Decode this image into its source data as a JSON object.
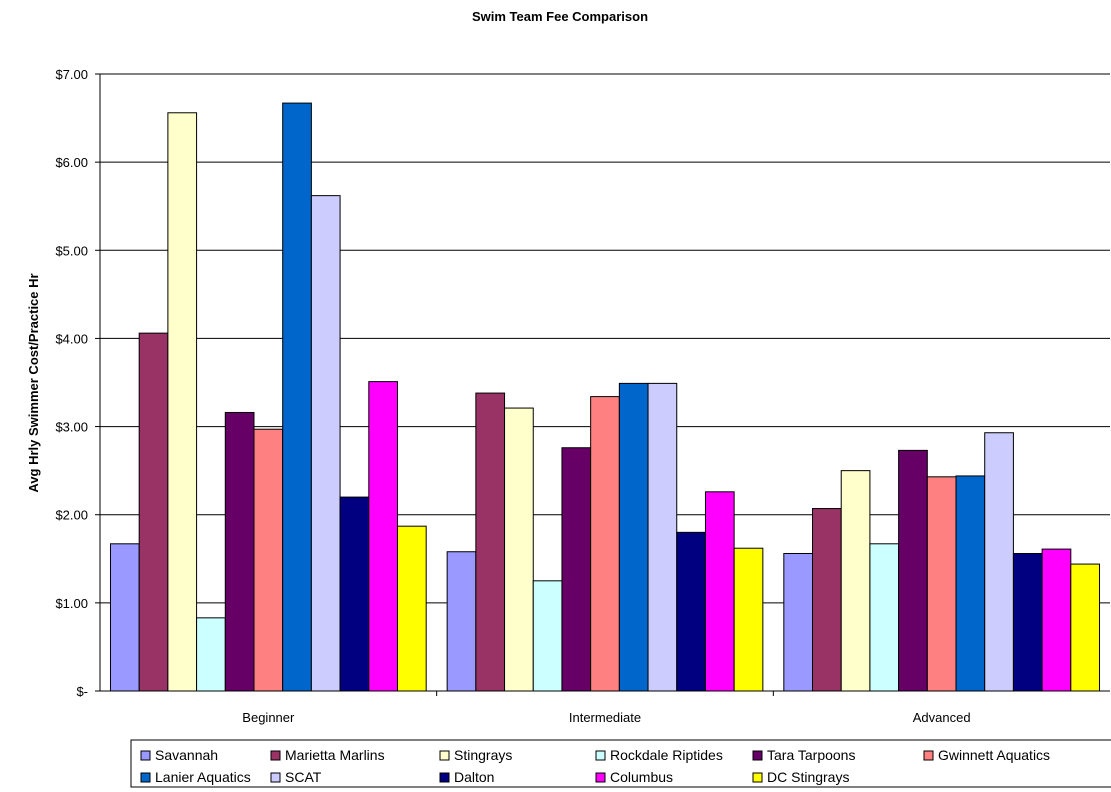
{
  "chart_data": {
    "type": "bar",
    "title": "Swim Team Fee Comparison",
    "xlabel": "",
    "ylabel": "Avg Hrly Swimmer Cost/Practice Hr",
    "ylim": [
      0,
      7
    ],
    "yticks": [
      0,
      1,
      2,
      3,
      4,
      5,
      6,
      7
    ],
    "ytick_labels": [
      "$-",
      "$1.00",
      "$2.00",
      "$3.00",
      "$4.00",
      "$5.00",
      "$6.00",
      "$7.00"
    ],
    "grid": true,
    "legend_position": "bottom",
    "categories": [
      "Beginner",
      "Intermediate",
      "Advanced"
    ],
    "series": [
      {
        "name": "Savannah",
        "color": "#9999ff",
        "values": [
          1.67,
          1.58,
          1.56
        ]
      },
      {
        "name": "Marietta Marlins",
        "color": "#993366",
        "values": [
          4.06,
          3.38,
          2.07
        ]
      },
      {
        "name": "Stingrays",
        "color": "#ffffcc",
        "values": [
          6.56,
          3.21,
          2.5
        ]
      },
      {
        "name": "Rockdale Riptides",
        "color": "#ccffff",
        "values": [
          0.83,
          1.25,
          1.67
        ]
      },
      {
        "name": "Tara Tarpoons",
        "color": "#660066",
        "values": [
          3.16,
          2.76,
          2.73
        ]
      },
      {
        "name": "Gwinnett Aquatics",
        "color": "#ff8080",
        "values": [
          2.97,
          3.34,
          2.43
        ]
      },
      {
        "name": "Lanier Aquatics",
        "color": "#0066cc",
        "values": [
          6.67,
          3.49,
          2.44
        ]
      },
      {
        "name": "SCAT",
        "color": "#ccccff",
        "values": [
          5.62,
          3.49,
          2.93
        ]
      },
      {
        "name": "Dalton",
        "color": "#000080",
        "values": [
          2.2,
          1.8,
          1.56
        ]
      },
      {
        "name": "Columbus",
        "color": "#ff00ff",
        "values": [
          3.51,
          2.26,
          1.61
        ]
      },
      {
        "name": "DC Stingrays",
        "color": "#ffff00",
        "values": [
          1.87,
          1.62,
          1.44
        ]
      }
    ]
  }
}
